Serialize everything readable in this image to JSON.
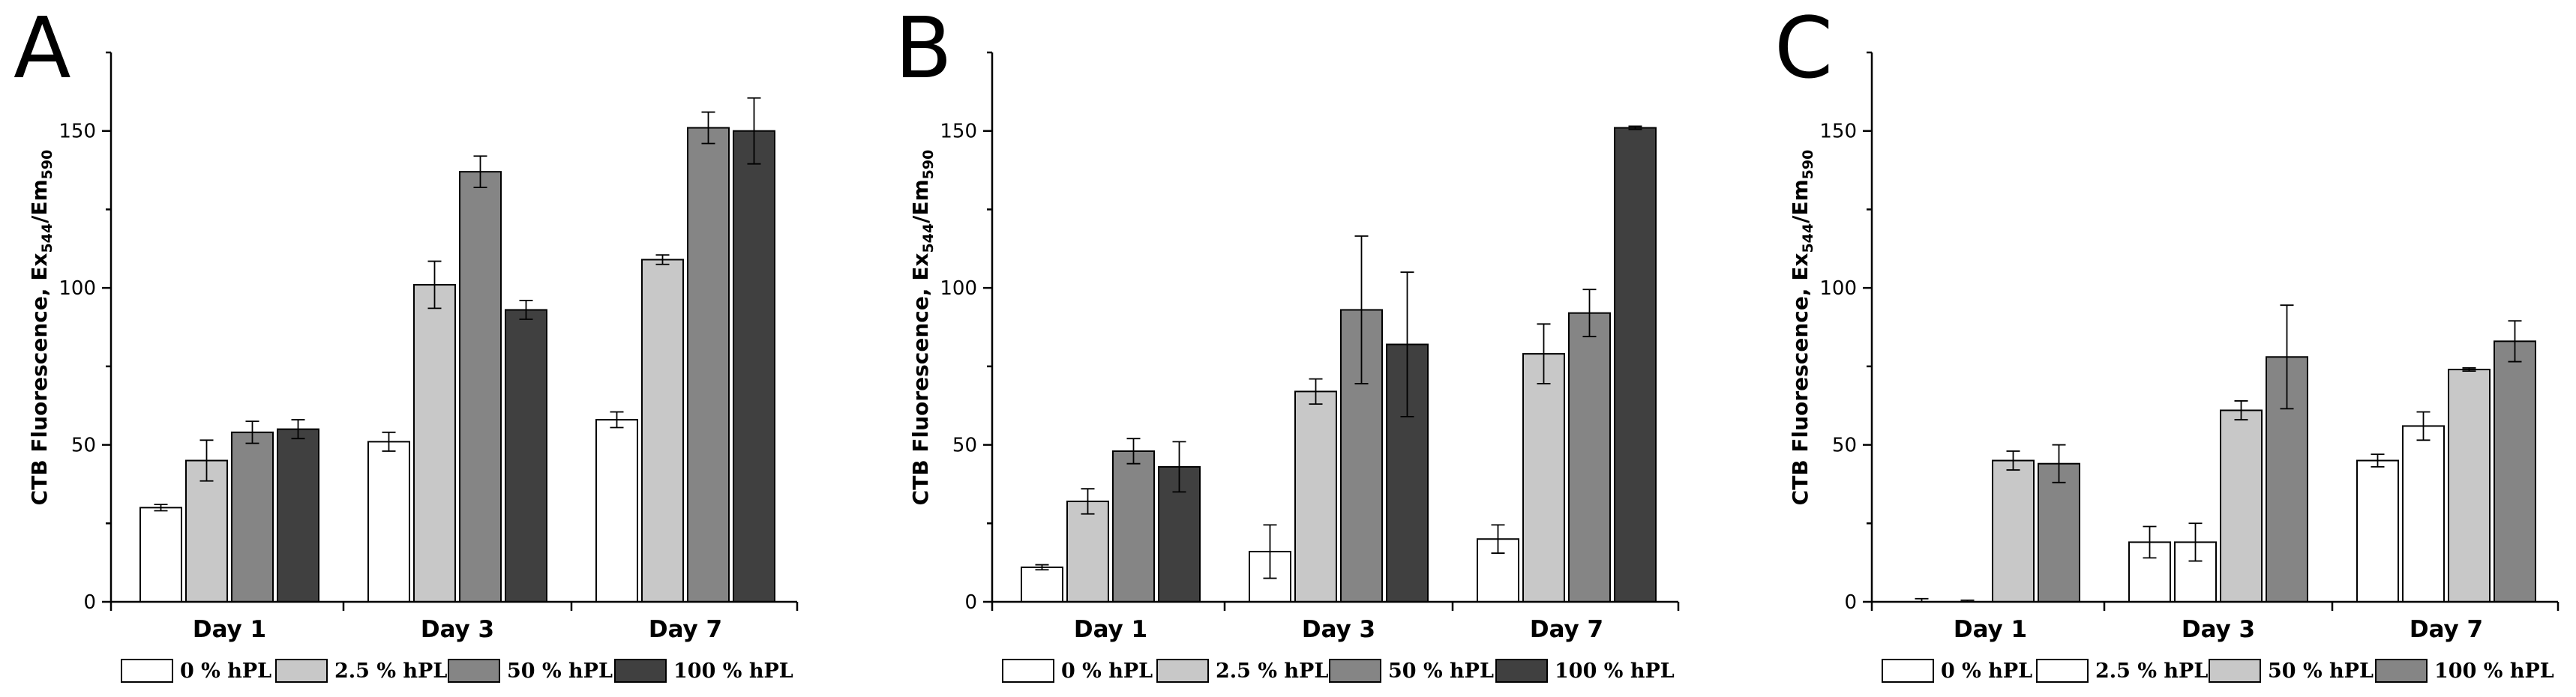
{
  "chart_data": [
    {
      "type": "bar",
      "panel": "A",
      "ylabel": {
        "main": "CTB Fluorescence, Ex",
        "sub1": "544",
        "mid": "/Em",
        "sub2": "590"
      },
      "ylim": [
        0,
        175
      ],
      "yticks": [
        0,
        50,
        100,
        150
      ],
      "categories": [
        "Day 1",
        "Day 3",
        "Day 7"
      ],
      "series": [
        {
          "name": "0 % hPL",
          "color": "#ffffff",
          "values": [
            30,
            51,
            58
          ],
          "errors": [
            1,
            3,
            2.5
          ]
        },
        {
          "name": "2.5 % hPL",
          "color": "#c8c8c8",
          "values": [
            45,
            101,
            109
          ],
          "errors": [
            6.5,
            7.5,
            1.5
          ]
        },
        {
          "name": "50 % hPL",
          "color": "#858585",
          "values": [
            54,
            137,
            151
          ],
          "errors": [
            3.5,
            5,
            5
          ]
        },
        {
          "name": "100 % hPL",
          "color": "#404040",
          "values": [
            55,
            93,
            150
          ],
          "errors": [
            3,
            3,
            10.5
          ]
        }
      ]
    },
    {
      "type": "bar",
      "panel": "B",
      "ylabel": {
        "main": "CTB Fluorescence, Ex",
        "sub1": "544",
        "mid": "/Em",
        "sub2": "590"
      },
      "ylim": [
        0,
        175
      ],
      "yticks": [
        0,
        50,
        100,
        150
      ],
      "categories": [
        "Day 1",
        "Day 3",
        "Day 7"
      ],
      "series": [
        {
          "name": "0 % hPL",
          "color": "#ffffff",
          "values": [
            11,
            16,
            20
          ],
          "errors": [
            0.8,
            8.5,
            4.5
          ]
        },
        {
          "name": "2.5 % hPL",
          "color": "#c8c8c8",
          "values": [
            32,
            67,
            79
          ],
          "errors": [
            4,
            4,
            9.5
          ]
        },
        {
          "name": "50 % hPL",
          "color": "#858585",
          "values": [
            48,
            93,
            92
          ],
          "errors": [
            4,
            23.5,
            7.5
          ]
        },
        {
          "name": "100 % hPL",
          "color": "#404040",
          "values": [
            43,
            82,
            151
          ],
          "errors": [
            8,
            23,
            0.5
          ]
        }
      ]
    },
    {
      "type": "bar",
      "panel": "C",
      "ylabel": {
        "main": "CTB Fluorescence, Ex",
        "sub1": "544",
        "mid": "/Em",
        "sub2": "590"
      },
      "ylim": [
        0,
        175
      ],
      "yticks": [
        0,
        50,
        100,
        150
      ],
      "categories": [
        "Day 1",
        "Day 3",
        "Day 7"
      ],
      "series": [
        {
          "name": "0 % hPL",
          "color": "#ffffff",
          "values": [
            0,
            19,
            45
          ],
          "errors": [
            1,
            5,
            2
          ]
        },
        {
          "name": "2.5 % hPL",
          "color": "#ffffff",
          "values": [
            0,
            19,
            56
          ],
          "errors": [
            0.5,
            6,
            4.5
          ]
        },
        {
          "name": "50 % hPL",
          "color": "#c8c8c8",
          "values": [
            45,
            61,
            74
          ],
          "errors": [
            3,
            3,
            0.5
          ]
        },
        {
          "name": "100 % hPL",
          "color": "#858585",
          "values": [
            44,
            78,
            83
          ],
          "errors": [
            6,
            16.5,
            6.5
          ]
        }
      ]
    }
  ]
}
